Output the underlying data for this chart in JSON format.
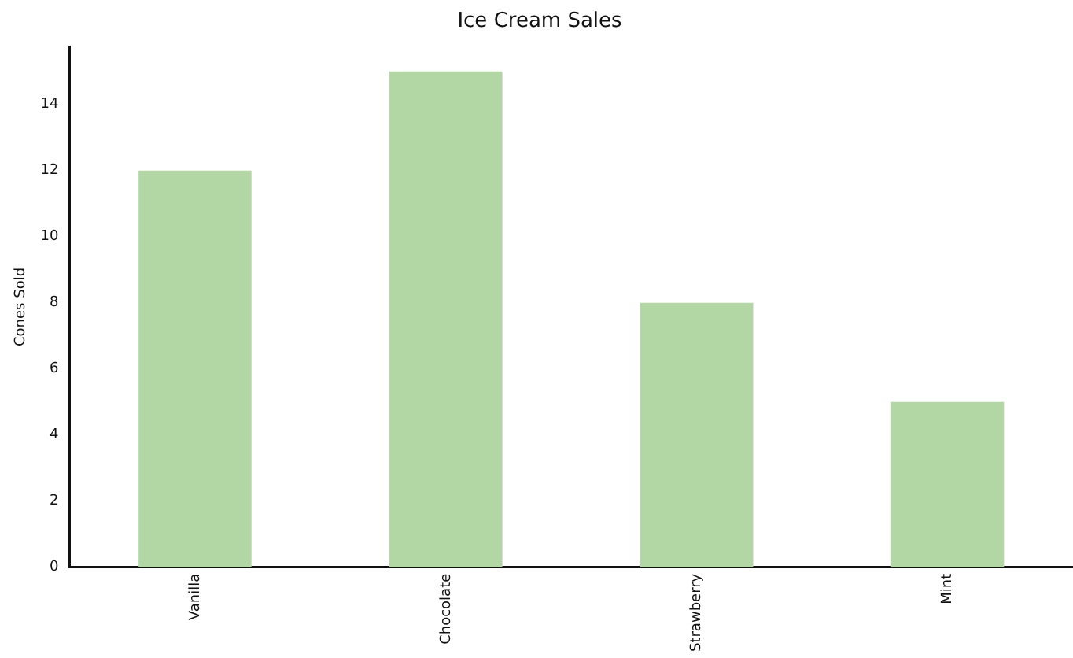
{
  "chart_data": {
    "type": "bar",
    "title": "Ice Cream Sales",
    "ylabel": "Cones Sold",
    "categories": [
      "Vanilla",
      "Chocolate",
      "Strawberry",
      "Mint"
    ],
    "values": [
      12,
      15,
      8,
      5
    ],
    "color": "#b3d6a5",
    "ylim": [
      0,
      15.75
    ],
    "yticks": [
      0,
      2,
      4,
      6,
      8,
      10,
      12,
      14
    ],
    "grid": false,
    "legend": false
  }
}
